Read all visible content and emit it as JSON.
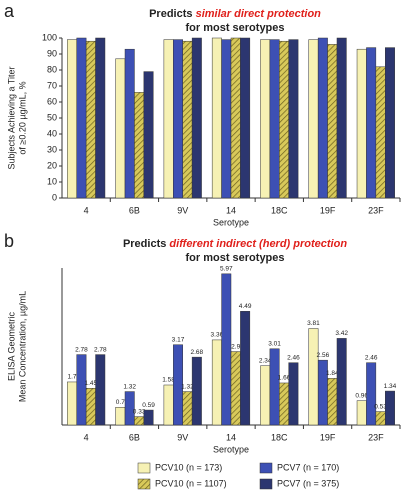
{
  "chart_data": [
    {
      "type": "bar",
      "panel_label": "a",
      "title_prefix": "Predicts",
      "title_emphasis": "similar direct protection",
      "title_suffix": "for most serotypes",
      "ylabel": [
        "Subjects Achieving a Titer",
        "of ≥0.20 µg/mL, %"
      ],
      "xlabel": "Serotype",
      "categories": [
        "4",
        "6B",
        "9V",
        "14",
        "18C",
        "19F",
        "23F"
      ],
      "ylim": [
        0,
        100
      ],
      "yticks": [
        0,
        10,
        20,
        30,
        40,
        50,
        60,
        70,
        80,
        90,
        100
      ],
      "series": [
        {
          "color": "#f6f1b4",
          "values": [
            99,
            87,
            99,
            100,
            99,
            99,
            93
          ]
        },
        {
          "color": "#3d50b4",
          "values": [
            100,
            93,
            99,
            99,
            99,
            100,
            94
          ]
        },
        {
          "color": "#d8c95a",
          "hatch": true,
          "values": [
            98,
            66,
            98,
            100,
            98,
            96,
            82
          ]
        },
        {
          "color": "#2c3670",
          "values": [
            100,
            79,
            100,
            100,
            99,
            100,
            94
          ]
        }
      ]
    },
    {
      "type": "bar",
      "panel_label": "b",
      "title_prefix": "Predicts",
      "title_emphasis": "different indirect (herd) protection",
      "title_suffix": "for most serotypes",
      "ylabel": [
        "ELISA Geometric",
        "Mean Concentration, µg/mL"
      ],
      "xlabel": "Serotype",
      "categories": [
        "4",
        "6B",
        "9V",
        "14",
        "18C",
        "19F",
        "23F"
      ],
      "ylim": [
        0,
        6.2
      ],
      "series": [
        {
          "name": "PCV10 (n = 173)",
          "color": "#f6f1b4",
          "values": [
            1.7,
            0.7,
            1.58,
            3.36,
            2.34,
            3.81,
            0.96
          ]
        },
        {
          "name": "PCV7 (n = 170)",
          "color": "#3d50b4",
          "values": [
            2.78,
            1.32,
            3.17,
            5.97,
            3.01,
            2.56,
            2.46
          ]
        },
        {
          "name": "PCV10 (n = 1107)",
          "color": "#d8c95a",
          "hatch": true,
          "values": [
            1.45,
            0.33,
            1.32,
            2.9,
            1.66,
            1.84,
            0.53
          ]
        },
        {
          "name": "PCV7 (n = 375)",
          "color": "#2c3670",
          "values": [
            2.78,
            0.59,
            2.68,
            4.49,
            2.46,
            3.42,
            1.34
          ]
        }
      ],
      "value_labels_shown": true
    }
  ]
}
